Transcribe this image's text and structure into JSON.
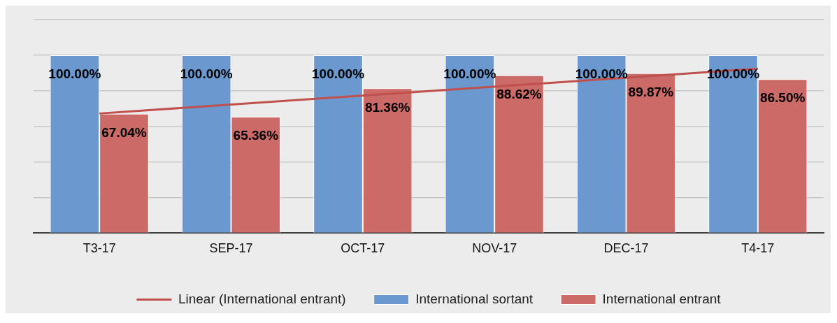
{
  "chart_data": {
    "type": "bar",
    "categories": [
      "T3-17",
      "SEP-17",
      "OCT-17",
      "NOV-17",
      "DEC-17",
      "T4-17"
    ],
    "series": [
      {
        "name": "International sortant",
        "color": "#6a98cf",
        "values": [
          100,
          100,
          100,
          100,
          100,
          100
        ],
        "value_labels": [
          "100.00%",
          "100.00%",
          "100.00%",
          "100.00%",
          "100.00%",
          "100.00%"
        ]
      },
      {
        "name": "International entrant",
        "color": "#cc6a68",
        "values": [
          67.04,
          65.36,
          81.36,
          88.62,
          89.87,
          86.5
        ],
        "value_labels": [
          "67.04%",
          "65.36%",
          "81.36%",
          "88.62%",
          "89.87%",
          "86.50%"
        ]
      },
      {
        "name": "Linear (International entrant)",
        "type": "line",
        "color": "#c0504d",
        "x": [
          "T3-17",
          "T4-17"
        ],
        "values": [
          67.2,
          92.4
        ]
      }
    ],
    "ylim": [
      0,
      120
    ],
    "yticks": [
      {
        "value": 0,
        "label": null
      },
      {
        "value": 20,
        "label": null
      },
      {
        "value": 40,
        "label": null
      },
      {
        "value": 60,
        "label": null
      },
      {
        "value": 80,
        "label": null
      },
      {
        "value": 100,
        "label": null
      },
      {
        "value": 120,
        "label": null
      }
    ],
    "tick_labels": "x",
    "grid": "y",
    "legend": "bottom",
    "marker": "none",
    "line_style": "solid"
  }
}
